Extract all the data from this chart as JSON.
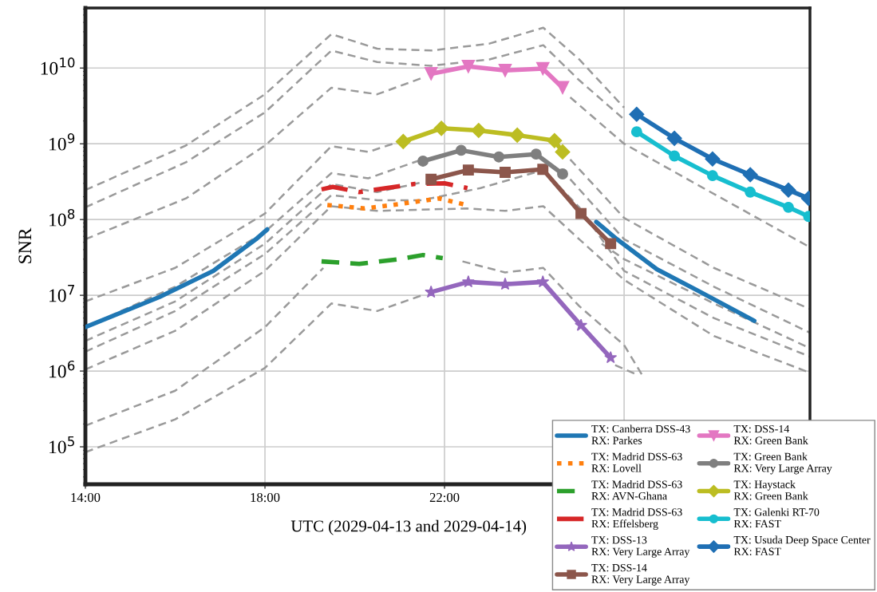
{
  "chart_data": {
    "type": "line",
    "xlabel": "UTC (2029-04-13 and 2029-04-14)",
    "ylabel": "SNR",
    "log": "y",
    "grid": true,
    "legend": "bottom right",
    "xlim": [
      14,
      30.14
    ],
    "xticks": [
      {
        "value": 14,
        "label": "14:00"
      },
      {
        "value": 18,
        "label": "18:00"
      },
      {
        "value": 22,
        "label": "22:00"
      },
      {
        "value": 26,
        "label": null
      }
    ],
    "ylim": [
      32000.0,
      62000000000.0
    ],
    "yticks": [
      {
        "value": 100000.0,
        "label": "10$^{5}$"
      },
      {
        "value": 1000000.0,
        "label": "10$^{6}$"
      },
      {
        "value": 10000000.0,
        "label": "10$^{7}$"
      },
      {
        "value": 100000000.0,
        "label": "10$^{8}$"
      },
      {
        "value": 1000000000.0,
        "label": "10$^{9}$"
      },
      {
        "value": 10000000000.0,
        "label": "10$^{10}$"
      }
    ],
    "series": [
      {
        "color": "#9a9a9a",
        "line_style": "dashed",
        "x": [
          14,
          16.24,
          18,
          19.48,
          20.5,
          21.7,
          23,
          24.2,
          25,
          26
        ],
        "values": [
          245000000.0,
          950000000.0,
          4500000000.0,
          28000000000.0,
          18000000000.0,
          17000000000.0,
          21000000000.0,
          34000000000.0,
          13000000000.0,
          3000000000.0
        ]
      },
      {
        "color": "#9a9a9a",
        "line_style": "dashed",
        "x": [
          14,
          16.24,
          18,
          19.48,
          20.5,
          21.7,
          23,
          24.2,
          25,
          26
        ],
        "values": [
          145000000.0,
          570000000.0,
          2600000000.0,
          17000000000.0,
          12000000000.0,
          10700000000.0,
          13000000000.0,
          20000000000.0,
          6900000000.0,
          2100000000.0
        ]
      },
      {
        "color": "#9a9a9a",
        "line_style": "dashed",
        "x": [
          14,
          16.24,
          18,
          19.48,
          20.5,
          21.5,
          23,
          24.8,
          26,
          27.6,
          30.14
        ],
        "values": [
          55000000.0,
          190000000.0,
          950000000.0,
          5500000000.0,
          4500000000.0,
          7400000000.0,
          null,
          4100000000.0,
          1000000000.0,
          295000000.0,
          43000000.0
        ]
      },
      {
        "color": "#9a9a9a",
        "line_style": "dashed",
        "x": [
          14,
          16,
          18,
          19.48,
          20.3,
          21.0,
          23,
          24.8,
          26,
          28,
          30.14
        ],
        "values": [
          8300000.0,
          23000000.0,
          120000000.0,
          930000000.0,
          780000000.0,
          1070000000.0,
          null,
          620000000.0,
          105000000.0,
          23000000.0,
          6600000.0
        ]
      },
      {
        "color": "#9a9a9a",
        "line_style": "dashed",
        "x": [
          14,
          16,
          18,
          19.48,
          20.3,
          21.5,
          23,
          24.8,
          26,
          28,
          30.14
        ],
        "values": [
          3800000.0,
          13000000.0,
          69000000.0,
          410000000.0,
          350000000.0,
          620000000.0,
          null,
          340000000.0,
          55000000.0,
          13000000.0,
          3200000.0
        ]
      },
      {
        "color": "#9a9a9a",
        "line_style": "dashed",
        "x": [
          14,
          16,
          18,
          19.48,
          20.5,
          21.5,
          23,
          25.5,
          26,
          28,
          30.14
        ],
        "values": [
          2500000.0,
          8300000.0,
          48000000.0,
          295000000.0,
          230000000.0,
          310000000.0,
          null,
          48000000.0,
          30000000.0,
          7800000.0,
          2000000.0
        ]
      },
      {
        "color": "#9a9a9a",
        "line_style": "dashed",
        "x": [
          14,
          16,
          18,
          19.48,
          20.5,
          21.5,
          22.8,
          24.2,
          25,
          26,
          28,
          30.14
        ],
        "values": [
          1800000.0,
          6200000.0,
          35000000.0,
          210000000.0,
          180000000.0,
          180000000.0,
          260000000.0,
          450000000.0,
          145000000.0,
          21000000.0,
          5000000.0,
          1550000.0
        ]
      },
      {
        "color": "#9a9a9a",
        "line_style": "dashed",
        "x": [
          14,
          16,
          18,
          19.48,
          20.5,
          22.5,
          23.35,
          24.2,
          25,
          26,
          28,
          30.14
        ],
        "values": [
          1050000.0,
          3400000.0,
          21000000.0,
          150000000.0,
          130000000.0,
          140000000.0,
          130000000.0,
          150000000.0,
          55000000.0,
          16000000.0,
          2900000.0,
          950000.0
        ]
      },
      {
        "color": "#9a9a9a",
        "line_style": "dashed",
        "x": [
          14,
          16,
          18,
          19.3,
          20.5,
          22.4,
          23.35,
          24.2,
          25,
          26,
          26.4
        ],
        "values": [
          190000.0,
          550000.0,
          3800000.0,
          23000000.0,
          null,
          28000000.0,
          20000000.0,
          23000000.0,
          7200000.0,
          2200000.0,
          890000.0
        ]
      },
      {
        "color": "#9a9a9a",
        "line_style": "dashed",
        "x": [
          14,
          16,
          18,
          19.48,
          20.5,
          21.5,
          23,
          25.8,
          26.3
        ],
        "values": [
          85000.0,
          230000.0,
          1100000.0,
          7800000.0,
          6200000.0,
          10000000.0,
          null,
          1200000.0,
          890000.0
        ]
      },
      {
        "name": "TX: Canberra DSS-43\nRX: Parkes",
        "color": "#1f77b4",
        "line_style": "solid",
        "marker": "none",
        "x": [
          14,
          15.65,
          16.85,
          17.8,
          18.05,
          21.7,
          25.38,
          25.84,
          26.73,
          27.62,
          28.9
        ],
        "values": [
          3800000.0,
          9500000.0,
          21000000.0,
          55000000.0,
          74000000.0,
          null,
          93000000.0,
          55000000.0,
          22000000.0,
          11700000.0,
          4600000.0
        ]
      },
      {
        "name": "TX: Madrid DSS-63\nRX: Lovell",
        "color": "#ff7f0e",
        "line_style": "dotted",
        "marker": "none",
        "x": [
          19.39,
          20.22,
          20.99,
          21.88,
          22.5
        ],
        "values": [
          155000000.0,
          140000000.0,
          160000000.0,
          190000000.0,
          155000000.0
        ]
      },
      {
        "name": "TX: Madrid DSS-63\nRX: AVN-Ghana",
        "color": "#2ca02c",
        "line_style": "dashed",
        "marker": "none",
        "x": [
          19.26,
          20.1,
          20.99,
          21.52,
          21.96
        ],
        "values": [
          28000000.0,
          26000000.0,
          30000000.0,
          34000000.0,
          31000000.0
        ]
      },
      {
        "name": "TX: Madrid DSS-63\nRX: Effelsberg",
        "color": "#d62728",
        "line_style": "dashdot",
        "marker": "none",
        "x": [
          19.26,
          19.51,
          20.1,
          21.34,
          22.0,
          22.51
        ],
        "values": [
          250000000.0,
          270000000.0,
          230000000.0,
          295000000.0,
          300000000.0,
          260000000.0
        ]
      },
      {
        "name": "TX: DSS-13\nRX: Very Large Array",
        "color": "#9467bd",
        "line_style": "solid",
        "marker": "star",
        "x": [
          21.7,
          22.53,
          23.35,
          24.19,
          25.04,
          25.7
        ],
        "values": [
          11000000.0,
          15000000.0,
          14000000.0,
          15000000.0,
          4000000.0,
          1500000.0
        ]
      },
      {
        "name": "TX: DSS-14\nRX: Very Large Array",
        "color": "#8c564b",
        "line_style": "solid",
        "marker": "square",
        "x": [
          21.7,
          22.53,
          23.35,
          24.19,
          25.04,
          25.7
        ],
        "values": [
          340000000.0,
          450000000.0,
          420000000.0,
          460000000.0,
          120000000.0,
          48000000.0
        ]
      },
      {
        "name": "TX: DSS-14\nRX: Green Bank",
        "color": "#e377c2",
        "line_style": "solid",
        "marker": "triangle_down",
        "x": [
          21.7,
          22.53,
          23.35,
          24.19,
          24.63
        ],
        "values": [
          8400000000.0,
          10500000000.0,
          9300000000.0,
          9800000000.0,
          5500000000.0
        ]
      },
      {
        "name": "TX: Green Bank\nRX: Very Large Array",
        "color": "#7f7f7f",
        "line_style": "solid",
        "marker": "circle",
        "x": [
          21.52,
          22.37,
          23.21,
          24.04,
          24.63
        ],
        "values": [
          590000000.0,
          820000000.0,
          670000000.0,
          730000000.0,
          400000000.0
        ]
      },
      {
        "name": "TX: Haystack\nRX: Green Bank",
        "color": "#bcbd22",
        "line_style": "solid",
        "marker": "diamond",
        "x": [
          21.08,
          21.93,
          22.76,
          23.62,
          24.45,
          24.63
        ],
        "values": [
          1070000000.0,
          1600000000.0,
          1500000000.0,
          1300000000.0,
          1100000000.0,
          780000000.0
        ]
      },
      {
        "name": "TX: Galenki RT-70\nRX: FAST",
        "color": "#17becf",
        "line_style": "solid",
        "marker": "circle",
        "x": [
          26.28,
          27.12,
          27.97,
          28.81,
          29.66,
          30.11
        ],
        "values": [
          1440000000.0,
          690000000.0,
          380000000.0,
          230000000.0,
          145000000.0,
          110000000.0
        ]
      },
      {
        "name": "TX: Usuda Deep Space Center\nRX: FAST",
        "color": "#1f6fb4",
        "line_style": "solid",
        "marker": "diamond",
        "x": [
          26.28,
          27.12,
          27.97,
          28.81,
          29.66,
          30.11
        ],
        "values": [
          2450000000.0,
          1180000000.0,
          630000000.0,
          390000000.0,
          245000000.0,
          190000000.0
        ]
      }
    ]
  }
}
